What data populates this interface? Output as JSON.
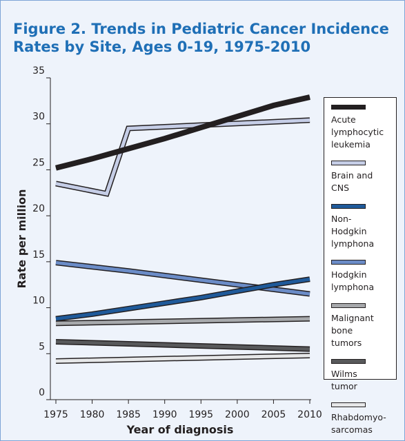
{
  "chart_data": {
    "type": "line",
    "title": "Figure 2. Trends in Pediatric Cancer Incidence Rates by Site, Ages 0-19, 1975-2010",
    "x_label": "Year of diagnosis",
    "y_label": "Rate per million",
    "xlim": [
      1975,
      2010
    ],
    "xticks": [
      1975,
      1980,
      1985,
      1990,
      1995,
      2000,
      2005,
      2010
    ],
    "ylim": [
      0,
      35
    ],
    "yticks": [
      0,
      5,
      10,
      15,
      20,
      25,
      30,
      35
    ],
    "series": [
      {
        "name": "Acute lymphocytic leukemia",
        "color": "#231f20",
        "x": [
          1975,
          1980,
          1985,
          1990,
          1995,
          2000,
          2005,
          2010
        ],
        "values": [
          25.2,
          26.2,
          27.3,
          28.4,
          29.6,
          30.8,
          32.0,
          32.9
        ]
      },
      {
        "name": "Brain and CNS",
        "color": "#c5cde6",
        "x": [
          1975,
          1982,
          1985,
          2010
        ],
        "values": [
          23.5,
          22.4,
          29.5,
          30.4
        ]
      },
      {
        "name": "Non-Hodgkin lymphona",
        "color": "#1f5a9a",
        "x": [
          1975,
          1980,
          1985,
          1990,
          1995,
          2000,
          2005,
          2010
        ],
        "values": [
          8.8,
          9.3,
          9.9,
          10.5,
          11.1,
          11.8,
          12.5,
          13.1
        ]
      },
      {
        "name": "Hodgkin lymphona",
        "color": "#6b8cc7",
        "x": [
          1975,
          1985,
          1995,
          2005,
          2010
        ],
        "values": [
          14.9,
          14.0,
          13.0,
          12.0,
          11.5
        ]
      },
      {
        "name": "Malignant bone tumors",
        "color": "#a7a9ac",
        "x": [
          1975,
          2010
        ],
        "values": [
          8.3,
          8.8
        ]
      },
      {
        "name": "Wilms tumor",
        "color": "#58595b",
        "x": [
          1975,
          2010
        ],
        "values": [
          6.3,
          5.5
        ]
      },
      {
        "name": "Rhabdomyo-sarcomas",
        "color": "#e6e7e8",
        "x": [
          1975,
          2010
        ],
        "values": [
          4.2,
          4.8
        ]
      }
    ]
  }
}
